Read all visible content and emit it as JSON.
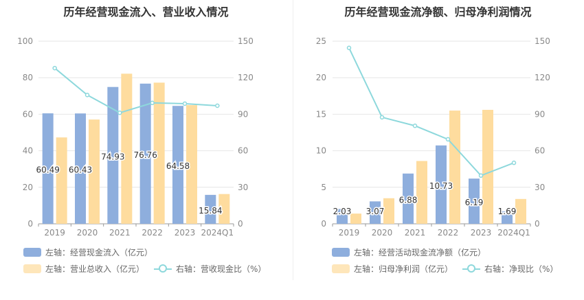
{
  "chart_data": [
    {
      "type": "bar",
      "title": "历年经营现金流入、营业收入情况",
      "categories": [
        "2019",
        "2020",
        "2021",
        "2022",
        "2023",
        "2024Q1"
      ],
      "left_axis": {
        "min": 0,
        "max": 100,
        "ticks": [
          "0",
          "20",
          "40",
          "60",
          "80",
          "100"
        ]
      },
      "right_axis": {
        "min": 0,
        "max": 150,
        "ticks": [
          "0",
          "30",
          "60",
          "90",
          "120",
          "150"
        ]
      },
      "series": [
        {
          "name": "左轴：经营现金流入（亿元）",
          "kind": "bar",
          "axis": "left",
          "color": "#8eaedd",
          "values": [
            60.49,
            60.43,
            74.93,
            76.76,
            64.58,
            15.84
          ],
          "labels": [
            "60.49",
            "60.43",
            "74.93",
            "76.76",
            "64.58",
            "15.84"
          ]
        },
        {
          "name": "左轴：营业总收入（亿元）",
          "kind": "bar",
          "axis": "left",
          "color": "#fedc9e",
          "values": [
            47.3,
            57.1,
            82.2,
            77.3,
            65.0,
            16.3
          ]
        },
        {
          "name": "右轴：营收现金比（%）",
          "kind": "line",
          "axis": "right",
          "color": "#8dd8dc",
          "values": [
            127.9,
            105.8,
            91.2,
            99.3,
            98.7,
            97.0
          ]
        }
      ]
    },
    {
      "type": "bar",
      "title": "历年经营现金流净额、归母净利润情况",
      "categories": [
        "2019",
        "2020",
        "2021",
        "2022",
        "2023",
        "2024Q1"
      ],
      "left_axis": {
        "min": 0,
        "max": 25,
        "ticks": [
          "0",
          "5",
          "10",
          "15",
          "20",
          "25"
        ]
      },
      "right_axis": {
        "min": 0,
        "max": 150,
        "ticks": [
          "0",
          "30",
          "60",
          "90",
          "120",
          "150"
        ]
      },
      "series": [
        {
          "name": "左轴：经营活动现金流净额（亿元）",
          "kind": "bar",
          "axis": "left",
          "color": "#8eaedd",
          "values": [
            2.03,
            3.07,
            6.88,
            10.73,
            6.19,
            1.69
          ],
          "labels": [
            "2.03",
            "3.07",
            "6.88",
            "10.73",
            "6.19",
            "1.69"
          ]
        },
        {
          "name": "左轴：归母净利润（亿元）",
          "kind": "bar",
          "axis": "left",
          "color": "#fedc9e",
          "values": [
            1.4,
            3.5,
            8.6,
            15.5,
            15.6,
            3.4
          ]
        },
        {
          "name": "右轴：净现比（%）",
          "kind": "line",
          "axis": "right",
          "color": "#8dd8dc",
          "values": [
            144.5,
            87.5,
            80.5,
            69.4,
            39.6,
            50.1
          ]
        }
      ]
    }
  ]
}
